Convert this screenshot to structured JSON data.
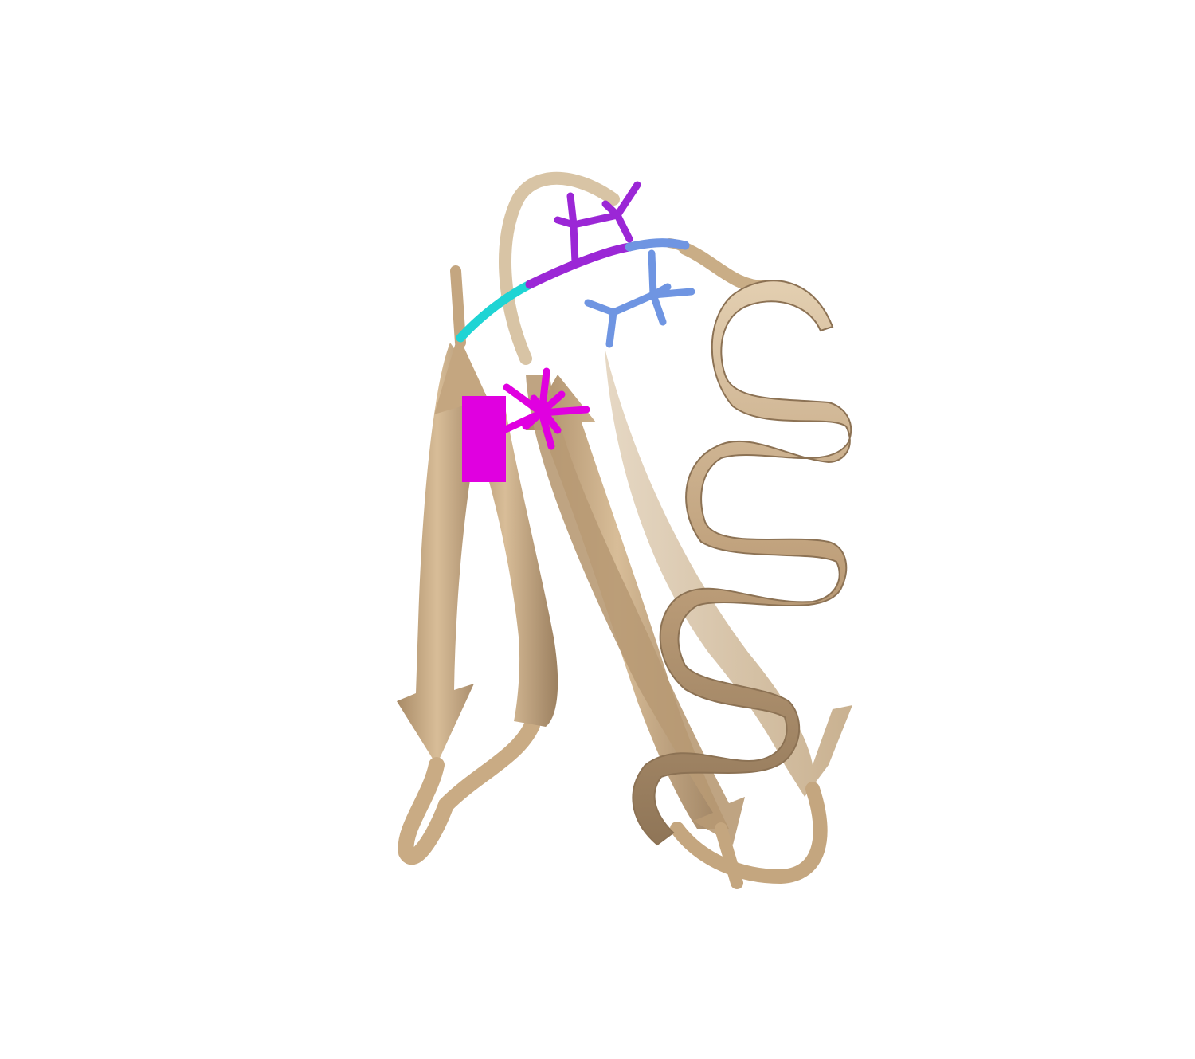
{
  "scene": {
    "kind": "protein-cartoon",
    "background": "#ffffff",
    "colors": {
      "ribbon": "#c4a57f",
      "ribbon_light": "#dcc5a3",
      "ribbon_dark": "#9f8462",
      "magenta": "#e000e0",
      "purple": "#9b27d6",
      "cornflower": "#6f95e2",
      "cyan": "#1fd4d4"
    },
    "highlighted_residues": [
      {
        "color": "magenta",
        "icon": "residue-sticks-icon"
      },
      {
        "color": "purple",
        "icon": "residue-sticks-icon"
      },
      {
        "color": "cornflower",
        "icon": "residue-sticks-icon"
      },
      {
        "color": "cyan",
        "icon": "backbone-segment-icon"
      }
    ]
  }
}
